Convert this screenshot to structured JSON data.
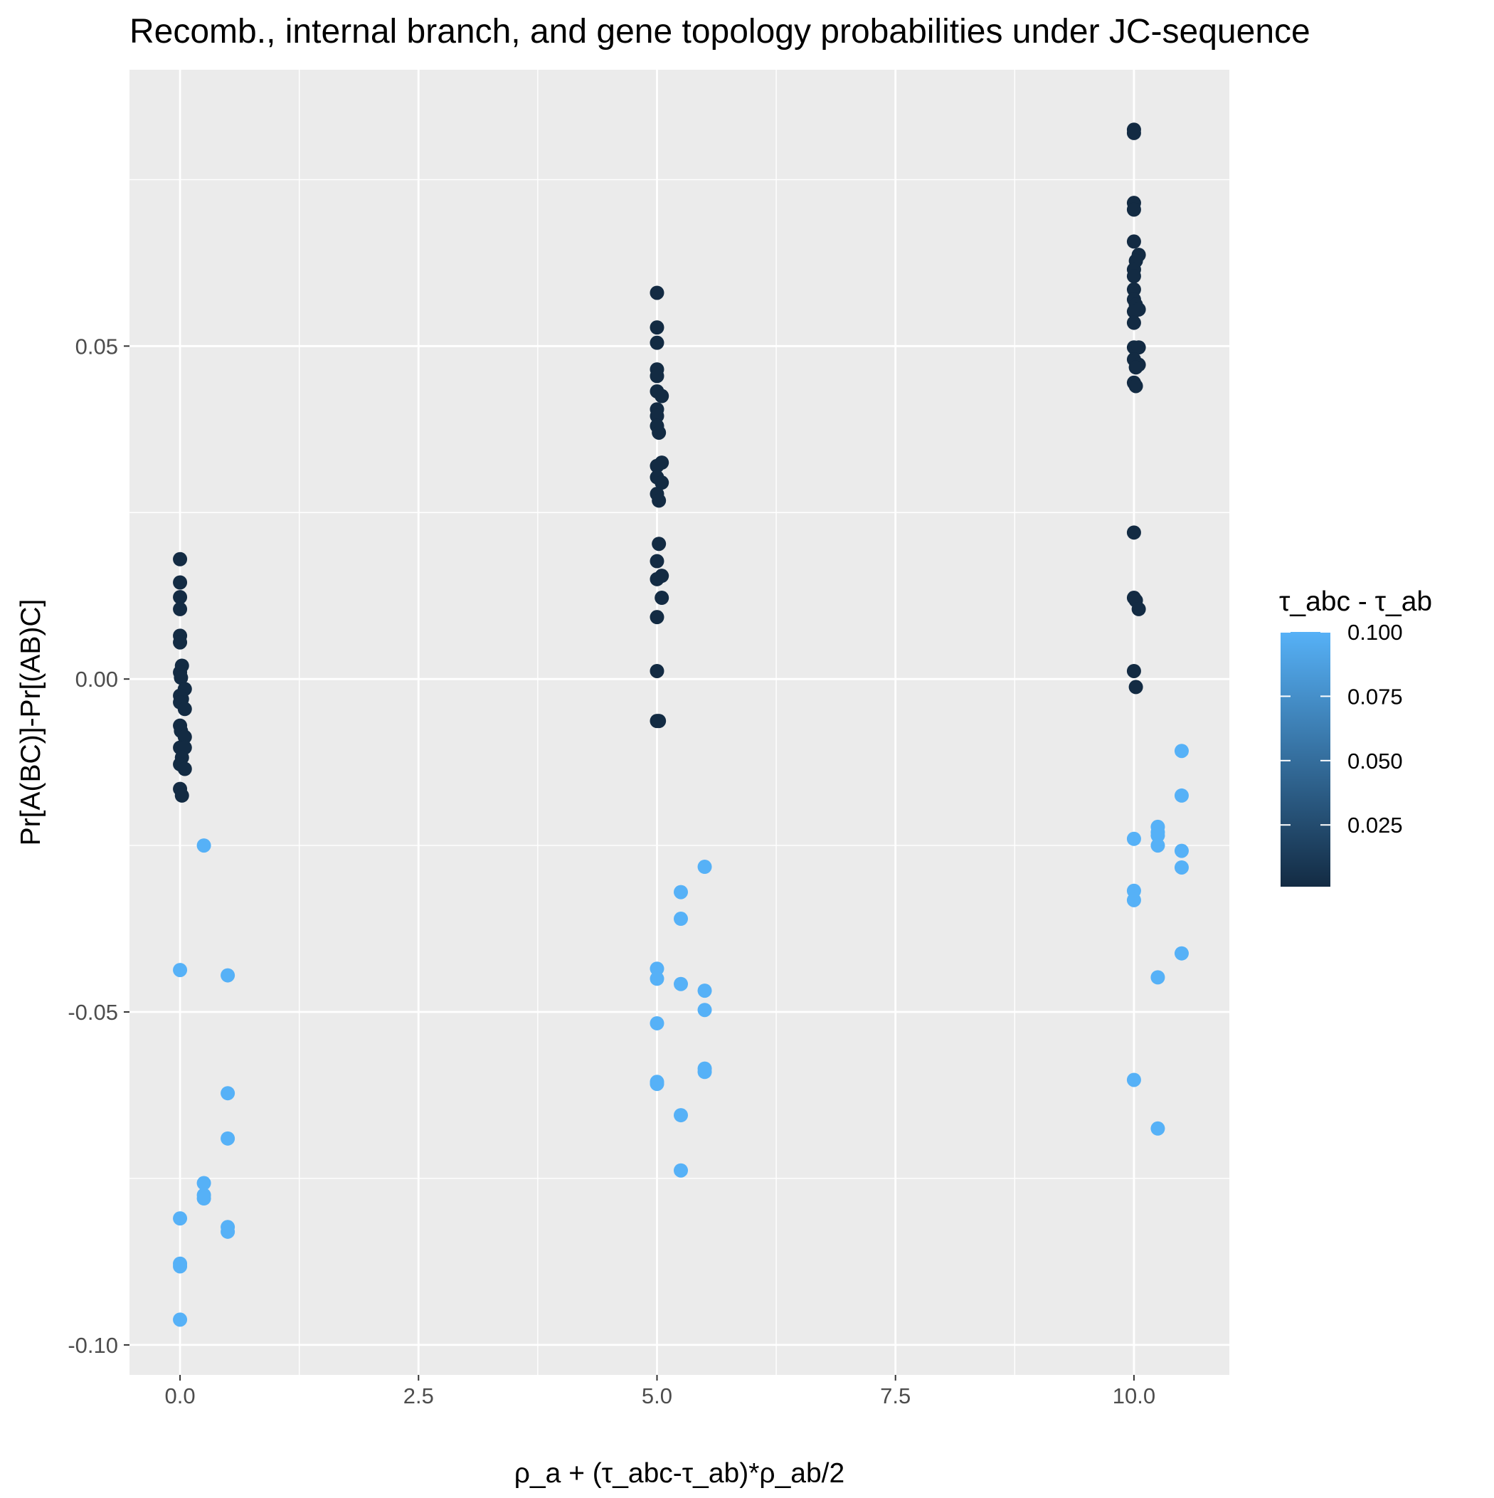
{
  "chart_data": {
    "type": "scatter",
    "title": "Recomb., internal branch, and gene topology probabilities under JC-sequence",
    "xlabel": "ρ_a + (τ_abc-τ_ab)*ρ_ab/2",
    "ylabel": "Pr[A(BC)]-Pr[(AB)C]",
    "xlim": [
      -0.53,
      11.0
    ],
    "ylim": [
      -0.1045,
      0.0915
    ],
    "x_ticks": [
      0,
      2.5,
      5,
      7.5,
      10
    ],
    "x_tick_labels": [
      "0.0",
      "2.5",
      "5.0",
      "7.5",
      "10.0"
    ],
    "y_ticks": [
      -0.1,
      -0.05,
      0,
      0.05
    ],
    "y_tick_labels": [
      "-0.10",
      "-0.05",
      "0.00",
      "0.05"
    ],
    "grid": true,
    "color_legend": {
      "title": "τ_abc - τ_ab",
      "position": "right",
      "range": [
        0.001,
        0.1
      ],
      "low_color": "#132B43",
      "high_color": "#56B1F7",
      "ticks": [
        0.1,
        0.075,
        0.05,
        0.025
      ],
      "tick_labels": [
        "0.100",
        "0.075",
        "0.050",
        "0.025"
      ]
    },
    "series": [
      {
        "color_value": 0.001,
        "points": [
          [
            0,
            0.018
          ],
          [
            0,
            0.0145
          ],
          [
            0,
            0.0123
          ],
          [
            0,
            0.0105
          ],
          [
            0,
            0.0065
          ],
          [
            0,
            0.0055
          ],
          [
            0.02,
            0.002
          ],
          [
            0,
            0.001
          ],
          [
            0.01,
            0.0002
          ],
          [
            0.05,
            -0.0015
          ],
          [
            0,
            -0.0025
          ],
          [
            0.02,
            -0.003
          ],
          [
            0,
            -0.0035
          ],
          [
            0.05,
            -0.0045
          ],
          [
            0,
            -0.007
          ],
          [
            0.01,
            -0.0078
          ],
          [
            0.05,
            -0.0087
          ],
          [
            0,
            -0.0103
          ],
          [
            0.05,
            -0.0103
          ],
          [
            0.02,
            -0.0118
          ],
          [
            0,
            -0.0128
          ],
          [
            0.05,
            -0.0135
          ],
          [
            0,
            -0.0165
          ],
          [
            0.02,
            -0.0175
          ],
          [
            5,
            0.058
          ],
          [
            5,
            0.0528
          ],
          [
            5,
            0.0505
          ],
          [
            5,
            0.0465
          ],
          [
            5,
            0.0455
          ],
          [
            5,
            0.0432
          ],
          [
            5.05,
            0.0425
          ],
          [
            5,
            0.0405
          ],
          [
            5,
            0.0395
          ],
          [
            5,
            0.038
          ],
          [
            5.02,
            0.037
          ],
          [
            5.05,
            0.0325
          ],
          [
            5,
            0.032
          ],
          [
            5,
            0.0303
          ],
          [
            5.05,
            0.0295
          ],
          [
            5,
            0.0278
          ],
          [
            5.02,
            0.0268
          ],
          [
            5.02,
            0.0203
          ],
          [
            5,
            0.0177
          ],
          [
            5.05,
            0.0155
          ],
          [
            5,
            0.015
          ],
          [
            5.05,
            0.0122
          ],
          [
            5,
            0.0093
          ],
          [
            5,
            0.0012
          ],
          [
            5,
            -0.0063
          ],
          [
            5.02,
            -0.0063
          ],
          [
            10,
            0.0825
          ],
          [
            10,
            0.082
          ],
          [
            10,
            0.0715
          ],
          [
            10,
            0.0705
          ],
          [
            10,
            0.0657
          ],
          [
            10.05,
            0.0637
          ],
          [
            10.02,
            0.0628
          ],
          [
            10,
            0.0615
          ],
          [
            10,
            0.0605
          ],
          [
            10,
            0.0585
          ],
          [
            10,
            0.057
          ],
          [
            10.02,
            0.0562
          ],
          [
            10.05,
            0.0555
          ],
          [
            10,
            0.0552
          ],
          [
            10,
            0.0535
          ],
          [
            10,
            0.0498
          ],
          [
            10.05,
            0.0498
          ],
          [
            10,
            0.048
          ],
          [
            10.05,
            0.0472
          ],
          [
            10.02,
            0.0468
          ],
          [
            10,
            0.0445
          ],
          [
            10.02,
            0.044
          ],
          [
            10,
            0.022
          ],
          [
            10,
            0.0122
          ],
          [
            10.02,
            0.0118
          ],
          [
            10.05,
            0.0105
          ],
          [
            10,
            0.0012
          ],
          [
            10.02,
            -0.0012
          ]
        ]
      },
      {
        "color_value": 0.1,
        "points": [
          [
            0.25,
            -0.025
          ],
          [
            0,
            -0.0437
          ],
          [
            0.5,
            -0.0445
          ],
          [
            0.5,
            -0.0622
          ],
          [
            0.5,
            -0.069
          ],
          [
            0.25,
            -0.0757
          ],
          [
            0.25,
            -0.0775
          ],
          [
            0.25,
            -0.078
          ],
          [
            0,
            -0.081
          ],
          [
            0.5,
            -0.0823
          ],
          [
            0.5,
            -0.083
          ],
          [
            0,
            -0.0878
          ],
          [
            0,
            -0.0882
          ],
          [
            0,
            -0.0962
          ],
          [
            5.5,
            -0.0282
          ],
          [
            5.25,
            -0.032
          ],
          [
            5.25,
            -0.036
          ],
          [
            5,
            -0.0435
          ],
          [
            5,
            -0.045
          ],
          [
            5.25,
            -0.0458
          ],
          [
            5.5,
            -0.0468
          ],
          [
            5.5,
            -0.0497
          ],
          [
            5,
            -0.0517
          ],
          [
            5.5,
            -0.0585
          ],
          [
            5.5,
            -0.059
          ],
          [
            5,
            -0.0605
          ],
          [
            5,
            -0.0608
          ],
          [
            5.25,
            -0.0655
          ],
          [
            5.25,
            -0.0738
          ],
          [
            10.5,
            -0.0108
          ],
          [
            10.5,
            -0.0175
          ],
          [
            10.25,
            -0.0222
          ],
          [
            10.25,
            -0.023
          ],
          [
            10.25,
            -0.0235
          ],
          [
            10,
            -0.024
          ],
          [
            10.25,
            -0.025
          ],
          [
            10.5,
            -0.0258
          ],
          [
            10.5,
            -0.0283
          ],
          [
            10,
            -0.0318
          ],
          [
            10,
            -0.0332
          ],
          [
            10.5,
            -0.0412
          ],
          [
            10.25,
            -0.0448
          ],
          [
            10,
            -0.0602
          ],
          [
            10.25,
            -0.0675
          ]
        ]
      }
    ]
  }
}
